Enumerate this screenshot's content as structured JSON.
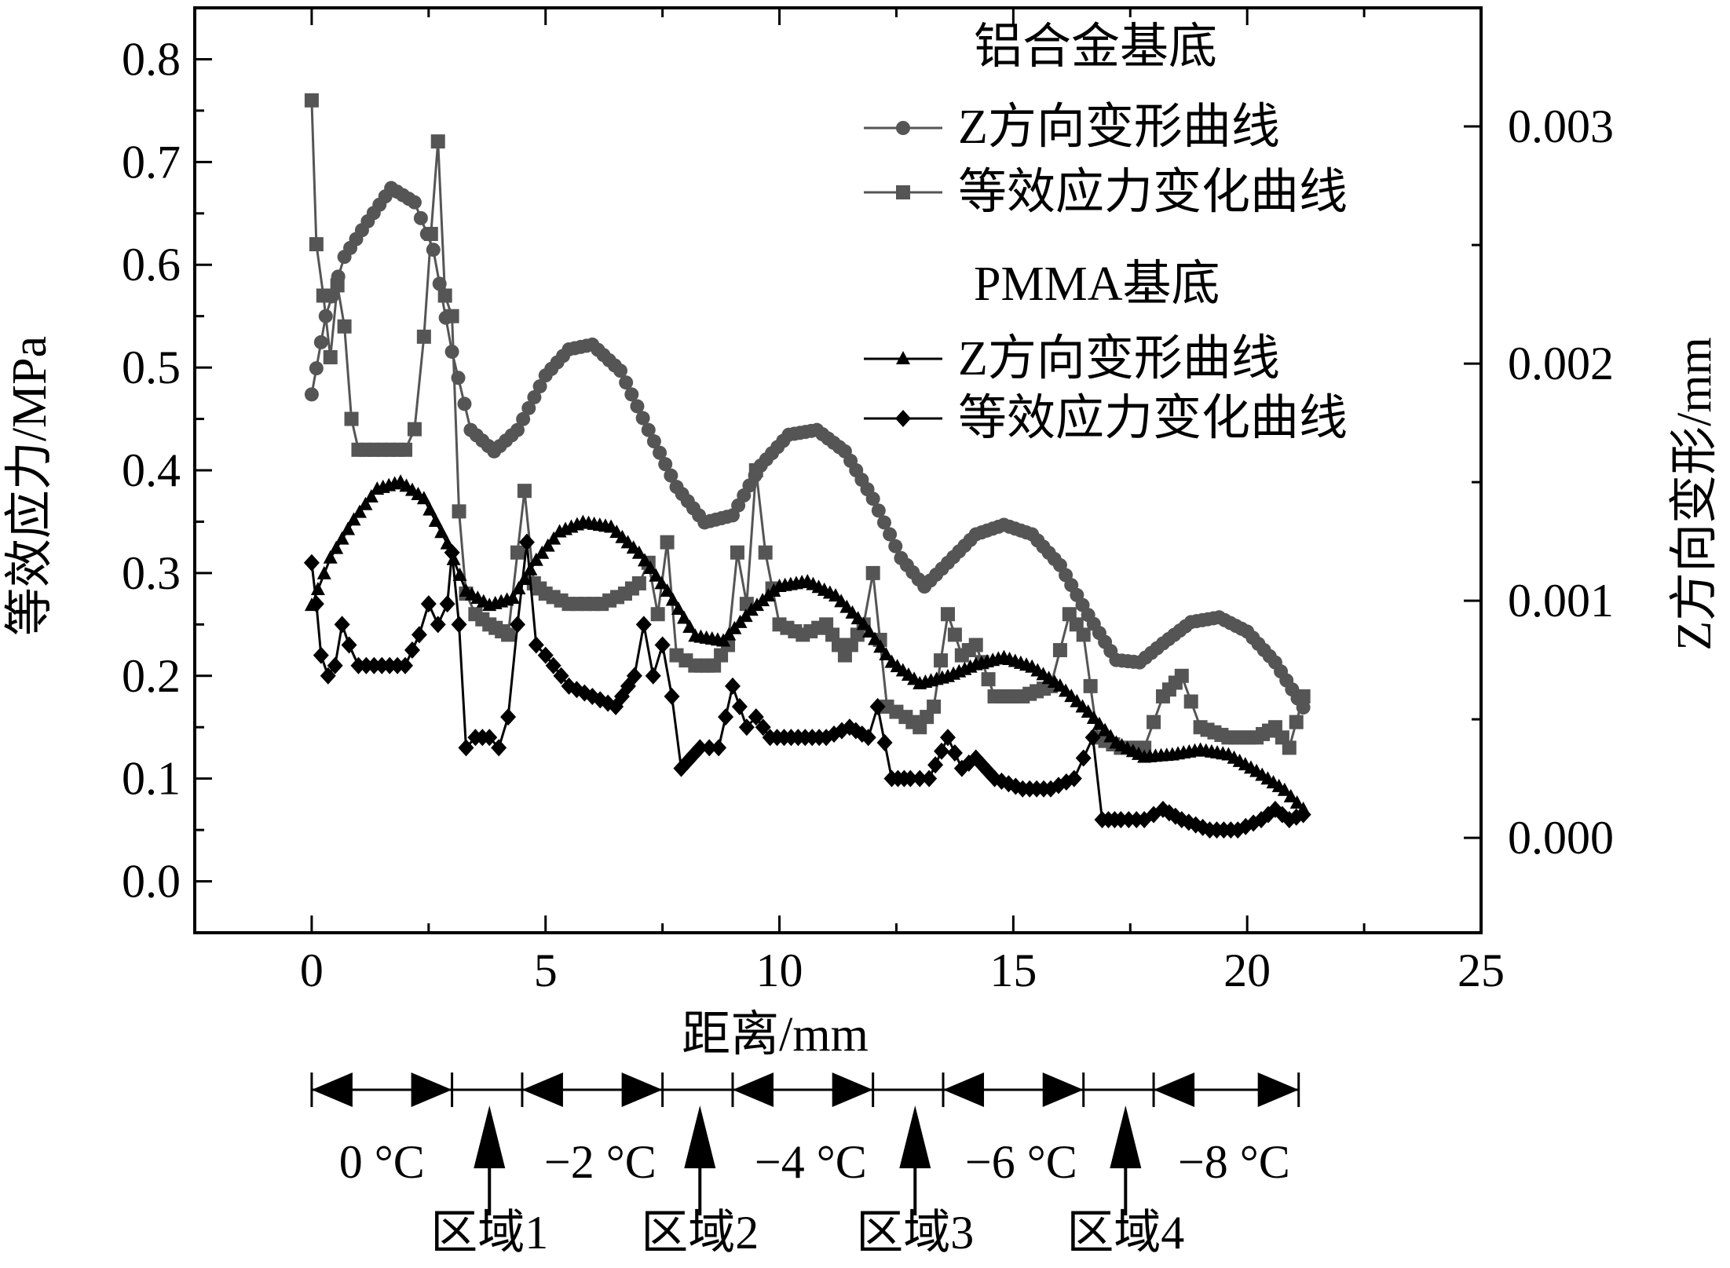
{
  "chart_data": {
    "type": "line",
    "xlabel": "距离/mm",
    "ylabel_left": "等效应力/MPa",
    "ylabel_right": "Z方向变形/mm",
    "xlim": [
      -2.5,
      25
    ],
    "ylim_left": [
      -0.05,
      0.85
    ],
    "ylim_right": [
      -0.0004,
      0.0035
    ],
    "x_ticks": [
      "0",
      "5",
      "10",
      "15",
      "20",
      "25"
    ],
    "y_left_ticks": [
      "0.0",
      "0.1",
      "0.2",
      "0.3",
      "0.4",
      "0.5",
      "0.6",
      "0.7",
      "0.8"
    ],
    "y_right_ticks": [
      "0.000",
      "0.001",
      "0.002",
      "0.003"
    ],
    "legend": {
      "placement": "top-right",
      "group1_title": "铝合金基底",
      "group1_deform": "Z方向变形曲线",
      "group1_stress": "等效应力变化曲线",
      "group2_title": "PMMA基底",
      "group2_deform": "Z方向变形曲线",
      "group2_stress": "等效应力变化曲线"
    },
    "series": [
      {
        "name": "铝合金基底 Z方向变形曲线",
        "axis": "right",
        "marker": "circle",
        "color": "#555555",
        "points": [
          [
            0,
            0.00187
          ],
          [
            0.3,
            0.0022
          ],
          [
            0.7,
            0.00245
          ],
          [
            1.2,
            0.0026
          ],
          [
            1.7,
            0.00274
          ],
          [
            2.2,
            0.00268
          ],
          [
            2.6,
            0.00248
          ],
          [
            3.0,
            0.00205
          ],
          [
            3.4,
            0.00172
          ],
          [
            3.9,
            0.00163
          ],
          [
            4.4,
            0.00172
          ],
          [
            5.0,
            0.00195
          ],
          [
            5.5,
            0.00206
          ],
          [
            6.0,
            0.00208
          ],
          [
            6.6,
            0.00197
          ],
          [
            7.2,
            0.00172
          ],
          [
            7.8,
            0.00148
          ],
          [
            8.4,
            0.00133
          ],
          [
            9.0,
            0.00136
          ],
          [
            9.6,
            0.00157
          ],
          [
            10.2,
            0.0017
          ],
          [
            10.8,
            0.00172
          ],
          [
            11.4,
            0.00163
          ],
          [
            12.0,
            0.00143
          ],
          [
            12.6,
            0.00118
          ],
          [
            13.1,
            0.00106
          ],
          [
            13.6,
            0.00116
          ],
          [
            14.2,
            0.00128
          ],
          [
            14.8,
            0.00132
          ],
          [
            15.4,
            0.00128
          ],
          [
            16.0,
            0.00115
          ],
          [
            16.6,
            0.00094
          ],
          [
            17.2,
            0.00075
          ],
          [
            17.7,
            0.00074
          ],
          [
            18.2,
            0.00082
          ],
          [
            18.8,
            0.00091
          ],
          [
            19.4,
            0.00093
          ],
          [
            20.0,
            0.00087
          ],
          [
            20.6,
            0.00074
          ],
          [
            21.2,
            0.00055
          ]
        ]
      },
      {
        "name": "铝合金基底 等效应力变化曲线",
        "axis": "left",
        "marker": "square",
        "color": "#555555",
        "points": [
          [
            0,
            0.76
          ],
          [
            0.1,
            0.62
          ],
          [
            0.25,
            0.57
          ],
          [
            0.4,
            0.51
          ],
          [
            0.55,
            0.58
          ],
          [
            0.7,
            0.54
          ],
          [
            0.85,
            0.45
          ],
          [
            1.0,
            0.42
          ],
          [
            1.5,
            0.42
          ],
          [
            2.0,
            0.42
          ],
          [
            2.2,
            0.44
          ],
          [
            2.4,
            0.53
          ],
          [
            2.55,
            0.63
          ],
          [
            2.7,
            0.72
          ],
          [
            2.85,
            0.57
          ],
          [
            3.0,
            0.55
          ],
          [
            3.15,
            0.36
          ],
          [
            3.3,
            0.28
          ],
          [
            3.5,
            0.26
          ],
          [
            3.8,
            0.25
          ],
          [
            4.2,
            0.24
          ],
          [
            4.4,
            0.32
          ],
          [
            4.55,
            0.38
          ],
          [
            4.75,
            0.29
          ],
          [
            5.0,
            0.28
          ],
          [
            5.5,
            0.27
          ],
          [
            6.2,
            0.27
          ],
          [
            6.7,
            0.28
          ],
          [
            7.0,
            0.29
          ],
          [
            7.2,
            0.31
          ],
          [
            7.4,
            0.26
          ],
          [
            7.6,
            0.33
          ],
          [
            7.8,
            0.22
          ],
          [
            8.2,
            0.21
          ],
          [
            8.6,
            0.21
          ],
          [
            8.9,
            0.23
          ],
          [
            9.1,
            0.32
          ],
          [
            9.3,
            0.27
          ],
          [
            9.5,
            0.4
          ],
          [
            9.7,
            0.32
          ],
          [
            10.0,
            0.25
          ],
          [
            10.5,
            0.24
          ],
          [
            11.0,
            0.25
          ],
          [
            11.4,
            0.22
          ],
          [
            11.8,
            0.25
          ],
          [
            12.0,
            0.3
          ],
          [
            12.3,
            0.17
          ],
          [
            12.7,
            0.16
          ],
          [
            13.0,
            0.15
          ],
          [
            13.3,
            0.17
          ],
          [
            13.6,
            0.26
          ],
          [
            13.9,
            0.22
          ],
          [
            14.2,
            0.23
          ],
          [
            14.6,
            0.18
          ],
          [
            15.2,
            0.18
          ],
          [
            15.8,
            0.19
          ],
          [
            16.2,
            0.26
          ],
          [
            16.5,
            0.24
          ],
          [
            16.8,
            0.14
          ],
          [
            17.3,
            0.13
          ],
          [
            17.8,
            0.13
          ],
          [
            18.2,
            0.18
          ],
          [
            18.6,
            0.2
          ],
          [
            19.0,
            0.15
          ],
          [
            19.6,
            0.14
          ],
          [
            20.2,
            0.14
          ],
          [
            20.6,
            0.15
          ],
          [
            20.9,
            0.13
          ],
          [
            21.2,
            0.18
          ]
        ]
      },
      {
        "name": "PMMA基底 Z方向变形曲线",
        "axis": "right",
        "marker": "triangle",
        "color": "#000000",
        "points": [
          [
            0,
            0.00098
          ],
          [
            0.4,
            0.00118
          ],
          [
            0.9,
            0.00134
          ],
          [
            1.4,
            0.00147
          ],
          [
            1.9,
            0.0015
          ],
          [
            2.4,
            0.00143
          ],
          [
            2.9,
            0.00124
          ],
          [
            3.3,
            0.00104
          ],
          [
            3.8,
            0.00098
          ],
          [
            4.3,
            0.00101
          ],
          [
            4.8,
            0.00117
          ],
          [
            5.3,
            0.00129
          ],
          [
            5.8,
            0.00133
          ],
          [
            6.4,
            0.00131
          ],
          [
            7.0,
            0.0012
          ],
          [
            7.6,
            0.00104
          ],
          [
            8.2,
            0.00085
          ],
          [
            8.8,
            0.00083
          ],
          [
            9.4,
            0.00096
          ],
          [
            10.0,
            0.00106
          ],
          [
            10.6,
            0.00108
          ],
          [
            11.2,
            0.00102
          ],
          [
            11.8,
            0.0009
          ],
          [
            12.4,
            0.00074
          ],
          [
            13.0,
            0.00065
          ],
          [
            13.6,
            0.00068
          ],
          [
            14.2,
            0.00073
          ],
          [
            14.8,
            0.00076
          ],
          [
            15.4,
            0.00072
          ],
          [
            16.0,
            0.00064
          ],
          [
            16.6,
            0.00053
          ],
          [
            17.2,
            0.0004
          ],
          [
            17.8,
            0.00034
          ],
          [
            18.4,
            0.00035
          ],
          [
            19.0,
            0.00037
          ],
          [
            19.6,
            0.00035
          ],
          [
            20.2,
            0.00028
          ],
          [
            20.8,
            0.0002
          ],
          [
            21.2,
            0.00012
          ]
        ]
      },
      {
        "name": "PMMA基底 等效应力变化曲线",
        "axis": "left",
        "marker": "diamond",
        "color": "#000000",
        "points": [
          [
            0,
            0.31
          ],
          [
            0.1,
            0.27
          ],
          [
            0.2,
            0.22
          ],
          [
            0.35,
            0.2
          ],
          [
            0.5,
            0.21
          ],
          [
            0.65,
            0.25
          ],
          [
            0.8,
            0.23
          ],
          [
            1.0,
            0.21
          ],
          [
            1.5,
            0.21
          ],
          [
            2.0,
            0.21
          ],
          [
            2.3,
            0.24
          ],
          [
            2.5,
            0.27
          ],
          [
            2.7,
            0.25
          ],
          [
            2.9,
            0.27
          ],
          [
            3.0,
            0.32
          ],
          [
            3.15,
            0.25
          ],
          [
            3.3,
            0.13
          ],
          [
            3.5,
            0.14
          ],
          [
            3.8,
            0.14
          ],
          [
            4.0,
            0.13
          ],
          [
            4.2,
            0.16
          ],
          [
            4.4,
            0.25
          ],
          [
            4.6,
            0.33
          ],
          [
            4.8,
            0.23
          ],
          [
            5.0,
            0.22
          ],
          [
            5.5,
            0.19
          ],
          [
            6.0,
            0.18
          ],
          [
            6.5,
            0.17
          ],
          [
            6.9,
            0.2
          ],
          [
            7.1,
            0.25
          ],
          [
            7.3,
            0.2
          ],
          [
            7.5,
            0.23
          ],
          [
            7.7,
            0.18
          ],
          [
            7.9,
            0.11
          ],
          [
            8.3,
            0.13
          ],
          [
            8.7,
            0.13
          ],
          [
            9.0,
            0.19
          ],
          [
            9.3,
            0.15
          ],
          [
            9.5,
            0.16
          ],
          [
            9.8,
            0.14
          ],
          [
            10.4,
            0.14
          ],
          [
            11.0,
            0.14
          ],
          [
            11.5,
            0.15
          ],
          [
            11.9,
            0.14
          ],
          [
            12.1,
            0.17
          ],
          [
            12.4,
            0.1
          ],
          [
            12.8,
            0.1
          ],
          [
            13.2,
            0.1
          ],
          [
            13.6,
            0.14
          ],
          [
            13.9,
            0.11
          ],
          [
            14.2,
            0.12
          ],
          [
            14.6,
            0.1
          ],
          [
            15.2,
            0.09
          ],
          [
            15.8,
            0.09
          ],
          [
            16.3,
            0.1
          ],
          [
            16.7,
            0.14
          ],
          [
            16.9,
            0.06
          ],
          [
            17.3,
            0.06
          ],
          [
            17.8,
            0.06
          ],
          [
            18.2,
            0.07
          ],
          [
            18.6,
            0.06
          ],
          [
            19.2,
            0.05
          ],
          [
            19.8,
            0.05
          ],
          [
            20.3,
            0.06
          ],
          [
            20.6,
            0.07
          ],
          [
            20.9,
            0.06
          ],
          [
            21.2,
            0.065
          ]
        ]
      }
    ],
    "temperature_bar": {
      "boundaries": [
        0,
        3.0,
        4.5,
        7.5,
        9.0,
        12.0,
        13.5,
        16.5,
        18.0,
        21.1
      ],
      "temperature_labels": [
        "0 °C",
        "−2 °C",
        "−4 °C",
        "−6 °C",
        "−8 °C"
      ],
      "zone_arrow_x": [
        3.8,
        8.3,
        12.9,
        17.4
      ],
      "zone_labels": [
        "区域1",
        "区域2",
        "区域3",
        "区域4"
      ]
    }
  }
}
